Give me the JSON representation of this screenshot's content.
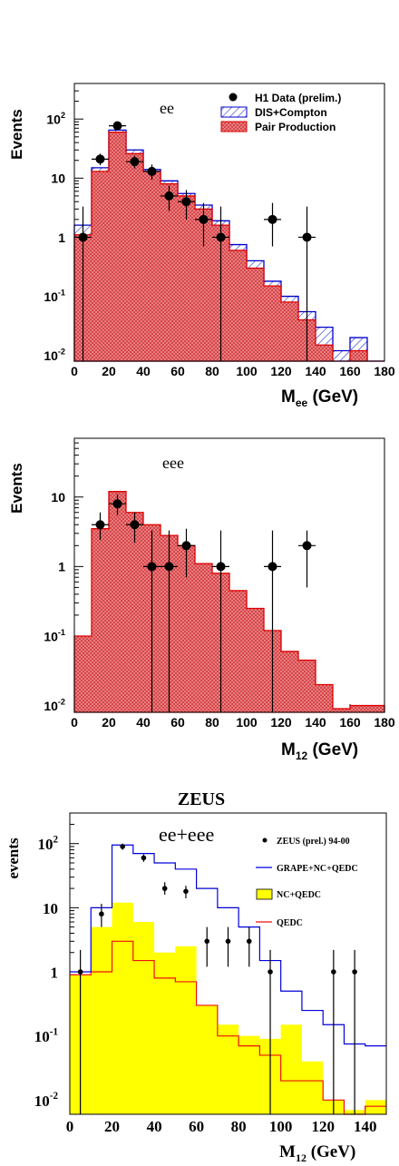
{
  "colors": {
    "pair_fill": "#e8777a",
    "pair_line": "#dd0000",
    "dis_line": "#0000cc",
    "dis_hatch": "#2233cc",
    "grape_line": "#0000dd",
    "nc_fill": "#ffff00",
    "qedc_line": "#ee1111",
    "data": "#000000"
  },
  "chart_data": [
    {
      "type": "histogram",
      "label": "ee",
      "ylabel": "Events",
      "xlabel_main": "M",
      "xlabel_sub": "ee",
      "xlabel_unit": " (GeV)",
      "xlim": [
        0,
        180
      ],
      "ylim": [
        0.008,
        400
      ],
      "yscale": "log",
      "x_ticks": [
        "0",
        "20",
        "40",
        "60",
        "80",
        "100",
        "120",
        "140",
        "160",
        "180"
      ],
      "y_ticks": [
        {
          "base": "10",
          "exp": "-2",
          "v": 0.01
        },
        {
          "base": "10",
          "exp": "-1",
          "v": 0.1
        },
        {
          "base": "1",
          "exp": "",
          "v": 1
        },
        {
          "base": "10",
          "exp": "",
          "v": 10
        },
        {
          "base": "10",
          "exp": "2",
          "v": 100
        }
      ],
      "legend": [
        "H1 Data (prelim.)",
        "DIS+Compton",
        "Pair Production"
      ],
      "bins": [
        0,
        10,
        20,
        30,
        40,
        50,
        60,
        70,
        80,
        90,
        100,
        110,
        120,
        130,
        140,
        150,
        160,
        170,
        180
      ],
      "pair_production": [
        1.1,
        13,
        60,
        26,
        13,
        8,
        5,
        3,
        1.6,
        0.6,
        0.3,
        0.15,
        0.08,
        0.04,
        0.015,
        0.008,
        0.012,
        0.008
      ],
      "dis_compton_total": [
        1.6,
        15,
        65,
        30,
        14,
        9,
        5.5,
        3.5,
        1.9,
        0.75,
        0.4,
        0.18,
        0.1,
        0.055,
        0.03,
        0.012,
        0.02,
        0.008
      ],
      "data": [
        {
          "x": 5,
          "y": 1,
          "ylo": 0.008,
          "yhi": 3.3
        },
        {
          "x": 15,
          "y": 21,
          "ylo": 16.5,
          "yhi": 26
        },
        {
          "x": 25,
          "y": 77,
          "ylo": 68,
          "yhi": 86
        },
        {
          "x": 35,
          "y": 19,
          "ylo": 14.6,
          "yhi": 24
        },
        {
          "x": 45,
          "y": 13,
          "ylo": 9.4,
          "yhi": 17
        },
        {
          "x": 55,
          "y": 5,
          "ylo": 2.8,
          "yhi": 7.5
        },
        {
          "x": 65,
          "y": 4,
          "ylo": 2.0,
          "yhi": 6.3
        },
        {
          "x": 75,
          "y": 2,
          "ylo": 0.7,
          "yhi": 3.8
        },
        {
          "x": 85,
          "y": 1,
          "ylo": 0.008,
          "yhi": 3.3
        },
        {
          "x": 115,
          "y": 2,
          "ylo": 0.7,
          "yhi": 3.8
        },
        {
          "x": 135,
          "y": 1,
          "ylo": 0.008,
          "yhi": 3.3
        }
      ]
    },
    {
      "type": "histogram",
      "label": "eee",
      "ylabel": "Events",
      "xlabel_main": "M",
      "xlabel_sub": "12",
      "xlabel_unit": " (GeV)",
      "xlim": [
        0,
        180
      ],
      "ylim": [
        0.008,
        70
      ],
      "yscale": "log",
      "x_ticks": [
        "0",
        "20",
        "40",
        "60",
        "80",
        "100",
        "120",
        "140",
        "160",
        "180"
      ],
      "y_ticks": [
        {
          "base": "10",
          "exp": "-2",
          "v": 0.01
        },
        {
          "base": "10",
          "exp": "-1",
          "v": 0.1
        },
        {
          "base": "1",
          "exp": "",
          "v": 1
        },
        {
          "base": "10",
          "exp": "",
          "v": 10
        }
      ],
      "bins": [
        0,
        10,
        20,
        30,
        40,
        50,
        60,
        70,
        80,
        90,
        100,
        110,
        120,
        130,
        140,
        150,
        160,
        170,
        180
      ],
      "pair_production": [
        0.1,
        3.5,
        12,
        6,
        4,
        2.8,
        2,
        1.1,
        0.8,
        0.45,
        0.25,
        0.12,
        0.06,
        0.045,
        0.02,
        0.009,
        0.01,
        0.01
      ],
      "data": [
        {
          "x": 15,
          "y": 4,
          "ylo": 2.4,
          "yhi": 6
        },
        {
          "x": 25,
          "y": 8,
          "ylo": 5.5,
          "yhi": 11
        },
        {
          "x": 35,
          "y": 4,
          "ylo": 2.2,
          "yhi": 6
        },
        {
          "x": 45,
          "y": 1,
          "ylo": 0.008,
          "yhi": 3.3
        },
        {
          "x": 55,
          "y": 1,
          "ylo": 0.008,
          "yhi": 3.3
        },
        {
          "x": 65,
          "y": 2,
          "ylo": 0.7,
          "yhi": 3.5
        },
        {
          "x": 85,
          "y": 1,
          "ylo": 0.008,
          "yhi": 3.3
        },
        {
          "x": 115,
          "y": 1,
          "ylo": 0.008,
          "yhi": 3.3
        },
        {
          "x": 135,
          "y": 2,
          "ylo": 0.5,
          "yhi": 3.3
        }
      ]
    },
    {
      "type": "histogram",
      "title": "ZEUS",
      "label": "ee+eee",
      "ylabel": "events",
      "xlabel_main": "M",
      "xlabel_sub": "12",
      "xlabel_unit": " (GeV)",
      "xlim": [
        0,
        150
      ],
      "ylim": [
        0.006,
        300
      ],
      "yscale": "log",
      "x_ticks": [
        "0",
        "20",
        "40",
        "60",
        "80",
        "100",
        "120",
        "140"
      ],
      "y_ticks": [
        {
          "base": "10",
          "exp": "-2",
          "v": 0.01
        },
        {
          "base": "10",
          "exp": "-1",
          "v": 0.1
        },
        {
          "base": "1",
          "exp": "",
          "v": 1
        },
        {
          "base": "10",
          "exp": "",
          "v": 10
        },
        {
          "base": "10",
          "exp": "2",
          "v": 100
        }
      ],
      "legend": [
        "ZEUS (prel.) 94-00",
        "GRAPE+NC+QEDC",
        "NC+QEDC",
        "QEDC"
      ],
      "bins": [
        0,
        10,
        20,
        30,
        40,
        50,
        60,
        70,
        80,
        90,
        100,
        110,
        120,
        130,
        140,
        150
      ],
      "grape": [
        1.0,
        10,
        95,
        70,
        50,
        40,
        20,
        10,
        5,
        1.5,
        0.5,
        0.25,
        0.15,
        0.075,
        0.07
      ],
      "nc_qedc": [
        0.9,
        5,
        12,
        6,
        2,
        2.5,
        0.3,
        0.15,
        0.1,
        0.09,
        0.15,
        0.04,
        0.01,
        0.007,
        0.01
      ],
      "qedc": [
        0.9,
        1.0,
        3,
        1.5,
        0.8,
        0.7,
        0.3,
        0.1,
        0.07,
        0.05,
        0.02,
        0.02,
        0.01,
        0.006,
        0.008
      ],
      "data": [
        {
          "x": 5,
          "y": 1,
          "ylo": 0.006,
          "yhi": 2.2
        },
        {
          "x": 15,
          "y": 8,
          "ylo": 5,
          "yhi": 11.5
        },
        {
          "x": 25,
          "y": 90,
          "ylo": 80,
          "yhi": 100
        },
        {
          "x": 35,
          "y": 60,
          "ylo": 52,
          "yhi": 68
        },
        {
          "x": 45,
          "y": 20,
          "ylo": 16,
          "yhi": 25
        },
        {
          "x": 55,
          "y": 18,
          "ylo": 14,
          "yhi": 22
        },
        {
          "x": 65,
          "y": 3,
          "ylo": 1.2,
          "yhi": 5
        },
        {
          "x": 75,
          "y": 3,
          "ylo": 1.2,
          "yhi": 5
        },
        {
          "x": 85,
          "y": 3,
          "ylo": 1.2,
          "yhi": 5
        },
        {
          "x": 95,
          "y": 1,
          "ylo": 0.006,
          "yhi": 2.2
        },
        {
          "x": 125,
          "y": 1,
          "ylo": 0.006,
          "yhi": 2.2
        },
        {
          "x": 135,
          "y": 1,
          "ylo": 0.006,
          "yhi": 2.2
        }
      ]
    }
  ]
}
